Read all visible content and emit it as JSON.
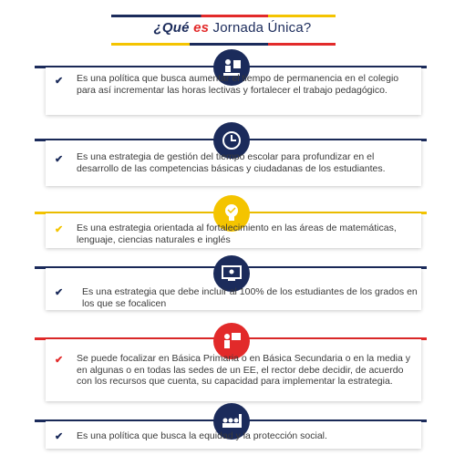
{
  "header": {
    "title_q": "¿Qué",
    "title_es": "es",
    "title_rest": "Jornada Única?"
  },
  "items": [
    {
      "icon": "presenter-icon",
      "color": "#1b2b5b",
      "text": "Es una política que busca aumentar el tiempo de permanencia en el colegio para así incrementar las horas lectivas y fortalecer el trabajo pedagógico."
    },
    {
      "icon": "clock-icon",
      "color": "#1b2b5b",
      "text": "Es una estrategia de gestión del tiempo escolar para profundizar en el desarrollo de las competencias básicas y ciudadanas de los estudiantes."
    },
    {
      "icon": "lightbulb-icon",
      "color": "#f4c400",
      "text": "Es una estrategia orientada al fortalecimiento en las áreas de matemáticas, lenguaje, ciencias naturales e inglés"
    },
    {
      "icon": "screen-icon",
      "color": "#1b2b5b",
      "text": "Es una estrategia que debe incluir al 100% de los estudiantes de los grados en los que se focalicen"
    },
    {
      "icon": "teacher-icon",
      "color": "#e22a2a",
      "text": "Se puede focalizar en Básica Primaria o en Básica Secundaria o en la media y en algunas o en todas las sedes de un EE, el rector debe decidir, de acuerdo con los recursos que cuenta, su capacidad para implementar la estrategia."
    },
    {
      "icon": "audience-icon",
      "color": "#1b2b5b",
      "text": "Es una política que busca la equidad y la protección social."
    }
  ]
}
